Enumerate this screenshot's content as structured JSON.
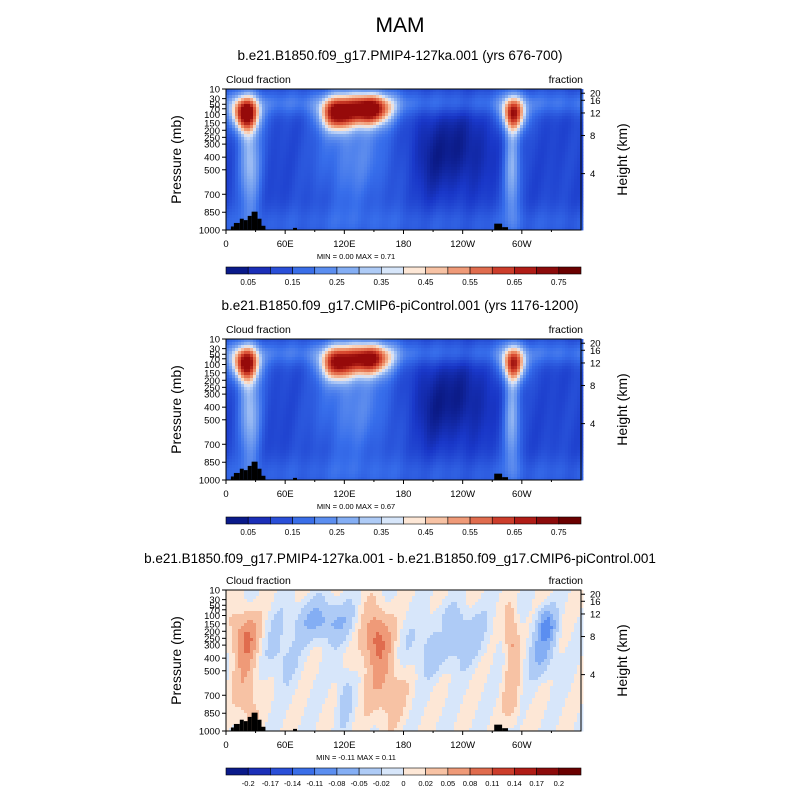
{
  "page": {
    "title": "MAM"
  },
  "chart_data": [
    {
      "type": "heatmap",
      "title": "b.e21.B1850.f09_g17.PMIP4-127ka.001 (yrs 676-700)",
      "left_label": "Cloud fraction",
      "right_label": "fraction",
      "ylabel": "Pressure (mb)",
      "ylabel_right": "Height (km)",
      "x_ticks": [
        "0",
        "60E",
        "120E",
        "180",
        "120W",
        "60W"
      ],
      "x_tick_values": [
        0,
        60,
        120,
        180,
        240,
        300
      ],
      "xlim": [
        0,
        360
      ],
      "y_ticks": [
        "10",
        "30",
        "50",
        "70",
        "100",
        "150",
        "200",
        "250",
        "300",
        "400",
        "500",
        "700",
        "850",
        "1000"
      ],
      "y_tick_values": [
        10,
        30,
        50,
        70,
        100,
        150,
        200,
        250,
        300,
        400,
        500,
        700,
        850,
        1000
      ],
      "y_right_ticks": [
        "20",
        "16",
        "12",
        "8",
        "4"
      ],
      "ylim": [
        1000,
        10
      ],
      "stats": "MIN =   0.00  MAX =   0.71",
      "colorbar": {
        "levels": [
          0.05,
          0.1,
          0.15,
          0.2,
          0.25,
          0.3,
          0.35,
          0.4,
          0.45,
          0.5,
          0.55,
          0.6,
          0.65,
          0.7,
          0.75
        ],
        "labels": [
          "0.05",
          "0.15",
          "0.25",
          "0.35",
          "0.45",
          "0.55",
          "0.65",
          "0.75"
        ],
        "colors": [
          "#0a1a8a",
          "#1b2fb8",
          "#2a4fd8",
          "#3a6ee8",
          "#5b8ef0",
          "#84aef4",
          "#aecbf6",
          "#d7e6fa",
          "#fde7d6",
          "#f7c2a4",
          "#ef9a78",
          "#e06c4e",
          "#cc3d2b",
          "#b01c16",
          "#8c0b0b",
          "#6a0000"
        ]
      }
    },
    {
      "type": "heatmap",
      "title": "b.e21.B1850.f09_g17.CMIP6-piControl.001 (yrs 1176-1200)",
      "left_label": "Cloud fraction",
      "right_label": "fraction",
      "ylabel": "Pressure (mb)",
      "ylabel_right": "Height (km)",
      "x_ticks": [
        "0",
        "60E",
        "120E",
        "180",
        "120W",
        "60W"
      ],
      "x_tick_values": [
        0,
        60,
        120,
        180,
        240,
        300
      ],
      "xlim": [
        0,
        360
      ],
      "y_ticks": [
        "10",
        "30",
        "50",
        "70",
        "100",
        "150",
        "200",
        "250",
        "300",
        "400",
        "500",
        "700",
        "850",
        "1000"
      ],
      "y_tick_values": [
        10,
        30,
        50,
        70,
        100,
        150,
        200,
        250,
        300,
        400,
        500,
        700,
        850,
        1000
      ],
      "y_right_ticks": [
        "20",
        "16",
        "12",
        "8",
        "4"
      ],
      "ylim": [
        1000,
        10
      ],
      "stats": "MIN =   0.00  MAX =   0.67",
      "colorbar": {
        "levels": [
          0.05,
          0.1,
          0.15,
          0.2,
          0.25,
          0.3,
          0.35,
          0.4,
          0.45,
          0.5,
          0.55,
          0.6,
          0.65,
          0.7,
          0.75
        ],
        "labels": [
          "0.05",
          "0.15",
          "0.25",
          "0.35",
          "0.45",
          "0.55",
          "0.65",
          "0.75"
        ],
        "colors": [
          "#0a1a8a",
          "#1b2fb8",
          "#2a4fd8",
          "#3a6ee8",
          "#5b8ef0",
          "#84aef4",
          "#aecbf6",
          "#d7e6fa",
          "#fde7d6",
          "#f7c2a4",
          "#ef9a78",
          "#e06c4e",
          "#cc3d2b",
          "#b01c16",
          "#8c0b0b",
          "#6a0000"
        ]
      }
    },
    {
      "type": "heatmap",
      "title": "b.e21.B1850.f09_g17.PMIP4-127ka.001 - b.e21.B1850.f09_g17.CMIP6-piControl.001",
      "left_label": "Cloud fraction",
      "right_label": "fraction",
      "ylabel": "Pressure (mb)",
      "ylabel_right": "Height (km)",
      "x_ticks": [
        "0",
        "60E",
        "120E",
        "180",
        "120W",
        "60W"
      ],
      "x_tick_values": [
        0,
        60,
        120,
        180,
        240,
        300
      ],
      "xlim": [
        0,
        360
      ],
      "y_ticks": [
        "10",
        "30",
        "50",
        "70",
        "100",
        "150",
        "200",
        "250",
        "300",
        "400",
        "500",
        "700",
        "850",
        "1000"
      ],
      "y_tick_values": [
        10,
        30,
        50,
        70,
        100,
        150,
        200,
        250,
        300,
        400,
        500,
        700,
        850,
        1000
      ],
      "y_right_ticks": [
        "20",
        "16",
        "12",
        "8",
        "4"
      ],
      "ylim": [
        1000,
        10
      ],
      "stats": "MIN =  -0.11  MAX =   0.11",
      "colorbar": {
        "levels": [
          -0.2,
          -0.17,
          -0.14,
          -0.11,
          -0.08,
          -0.05,
          -0.02,
          0,
          0.02,
          0.05,
          0.08,
          0.11,
          0.14,
          0.17,
          0.2
        ],
        "labels": [
          "-0.2",
          "-0.17",
          "-0.14",
          "-0.11",
          "-0.08",
          "-0.05",
          "-0.02",
          "0",
          "0.02",
          "0.05",
          "0.08",
          "0.11",
          "0.14",
          "0.17",
          "0.2"
        ],
        "colors": [
          "#0a1a8a",
          "#1b2fb8",
          "#2a4fd8",
          "#3a6ee8",
          "#5b8ef0",
          "#84aef4",
          "#aecbf6",
          "#d7e6fa",
          "#fde7d6",
          "#f7c2a4",
          "#ef9a78",
          "#e06c4e",
          "#cc3d2b",
          "#b01c16",
          "#8c0b0b",
          "#6a0000"
        ]
      }
    }
  ]
}
